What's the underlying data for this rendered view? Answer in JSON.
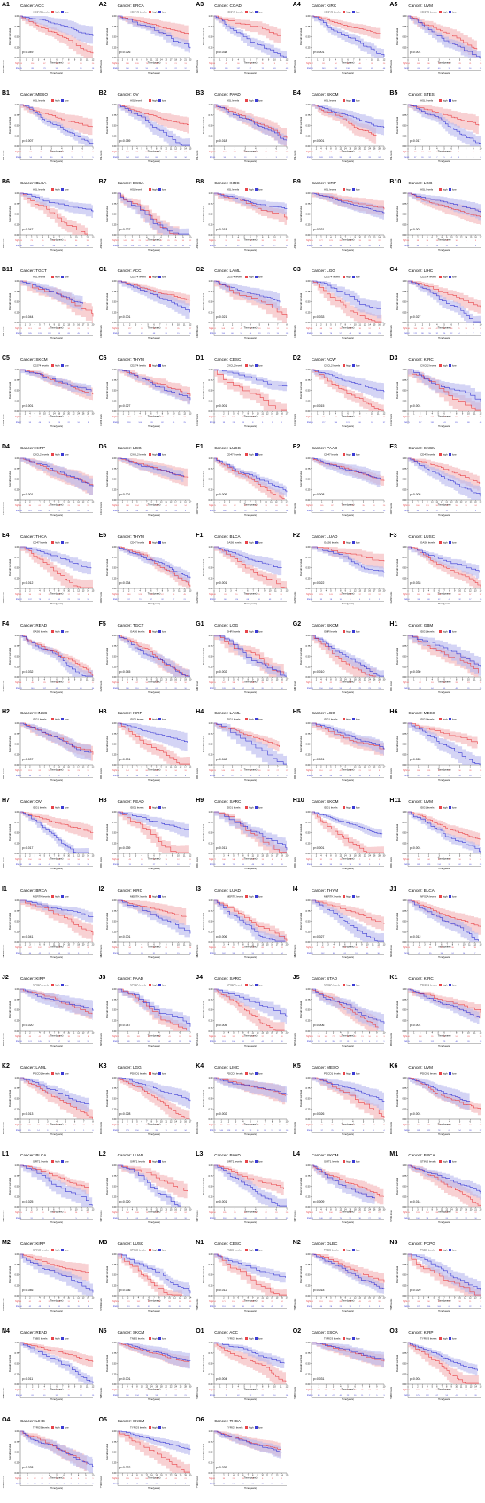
{
  "colors": {
    "high": "#e8454a",
    "low": "#3c3cd4",
    "high_band": "#f3b3b5",
    "low_band": "#b7b7ee",
    "text": "#000000"
  },
  "common": {
    "legend_high": "high",
    "legend_low": "low",
    "xlabel": "Time(years)",
    "ylabel": "Overall survival",
    "risk_rows": [
      "high",
      "low"
    ]
  },
  "chart_data": [
    {
      "id": "A1",
      "type": "line",
      "cancer": "ACC",
      "title": "Cancer: ACC",
      "gene_label": "ADCY5 levels",
      "p": "p=0.049",
      "xmax": 12
    },
    {
      "id": "A2",
      "type": "line",
      "cancer": "BRCA",
      "title": "Cancer: BRCA",
      "gene_label": "ADCY5 levels",
      "p": "p=0.026",
      "xmax": 23
    },
    {
      "id": "A3",
      "type": "line",
      "cancer": "COAD",
      "title": "Cancer: COAD",
      "gene_label": "ADCY5 levels",
      "p": "p=0.038",
      "xmax": 12
    },
    {
      "id": "A4",
      "type": "line",
      "cancer": "KIRC",
      "title": "Cancer: KIRC",
      "gene_label": "ADCY5 levels",
      "p": "p<0.001",
      "xmax": 12
    },
    {
      "id": "A5",
      "type": "line",
      "cancer": "UVM",
      "title": "Cancer: UVM",
      "gene_label": "ADCY5 levels",
      "p": "p<0.001",
      "xmax": 7
    },
    {
      "id": "B1",
      "type": "line",
      "cancer": "MESO",
      "title": "Cancer: MESO",
      "gene_label": "ASL levels",
      "p": "p=0.007",
      "xmax": 7
    },
    {
      "id": "B2",
      "type": "line",
      "cancer": "OV",
      "title": "Cancer: OV",
      "gene_label": "ASL levels",
      "p": "p=0.059",
      "xmax": 15
    },
    {
      "id": "B3",
      "type": "line",
      "cancer": "PAAD",
      "title": "Cancer: PAAD",
      "gene_label": "ASL levels",
      "p": "p=0.018",
      "xmax": 7
    },
    {
      "id": "B4",
      "type": "line",
      "cancer": "SKCM",
      "title": "Cancer: SKCM",
      "gene_label": "ASL levels",
      "p": "p<0.001",
      "xmax": 30
    },
    {
      "id": "B5",
      "type": "line",
      "cancer": "STES",
      "title": "Cancer: STES",
      "gene_label": "ASL levels",
      "p": "p=0.017",
      "xmax": 10
    },
    {
      "id": "B6",
      "type": "line",
      "cancer": "BLCA",
      "title": "Cancer: BLCA",
      "gene_label": "ASL levels",
      "p": "p=0.047",
      "xmax": 13
    },
    {
      "id": "B7",
      "type": "line",
      "cancer": "ESCA",
      "title": "Cancer: ESCA",
      "gene_label": "ASL levels",
      "p": "p=0.027",
      "xmax": 10
    },
    {
      "id": "B8",
      "type": "line",
      "cancer": "KIRC",
      "title": "Cancer: KIRC",
      "gene_label": "ASL levels",
      "p": "p=0.018",
      "xmax": 12
    },
    {
      "id": "B9",
      "type": "line",
      "cancer": "KIRP",
      "title": "Cancer: KIRP",
      "gene_label": "ASL levels",
      "p": "p=0.031",
      "xmax": 15
    },
    {
      "id": "B10",
      "type": "line",
      "cancer": "LGG",
      "title": "Cancer: LGG",
      "gene_label": "ASL levels",
      "p": "p<0.001",
      "xmax": 17
    },
    {
      "id": "B11",
      "type": "line",
      "cancer": "TGCT",
      "title": "Cancer: TGCT",
      "gene_label": "ASL levels",
      "p": "p=0.044",
      "xmax": 20
    },
    {
      "id": "C1",
      "type": "line",
      "cancer": "ACC",
      "title": "Cancer: ACC",
      "gene_label": "CD274 levels",
      "p": "p<0.001",
      "xmax": 12
    },
    {
      "id": "C2",
      "type": "line",
      "cancer": "LAML",
      "title": "Cancer: LAML",
      "gene_label": "CD274 levels",
      "p": "p=0.021",
      "xmax": 8
    },
    {
      "id": "C3",
      "type": "line",
      "cancer": "LGG",
      "title": "Cancer: LGG",
      "gene_label": "CD274 levels",
      "p": "p=0.033",
      "xmax": 17
    },
    {
      "id": "C4",
      "type": "line",
      "cancer": "LIHC",
      "title": "Cancer: LIHC",
      "gene_label": "CD274 levels",
      "p": "p=0.027",
      "xmax": 10
    },
    {
      "id": "C5",
      "type": "line",
      "cancer": "SKCM",
      "title": "Cancer: SKCM",
      "gene_label": "CD274 levels",
      "p": "p<0.001",
      "xmax": 30
    },
    {
      "id": "C6",
      "type": "line",
      "cancer": "THYM",
      "title": "Cancer: THYM",
      "gene_label": "CD274 levels",
      "p": "p=0.027",
      "xmax": 13
    },
    {
      "id": "D1",
      "type": "line",
      "cancer": "CESC",
      "title": "Cancer: CESC",
      "gene_label": "CXCL2 levels",
      "p": "p<0.001",
      "xmax": 17
    },
    {
      "id": "D2",
      "type": "line",
      "cancer": "ACW",
      "title": "Cancer: ACW",
      "gene_label": "CXCL2 levels",
      "p": "p=0.015",
      "xmax": 12
    },
    {
      "id": "D3",
      "type": "line",
      "cancer": "KIRC",
      "title": "Cancer: KIRC",
      "gene_label": "CXCL2 levels",
      "p": "p<0.001",
      "xmax": 12
    },
    {
      "id": "D4",
      "type": "line",
      "cancer": "KIRP",
      "title": "Cancer: KIRP",
      "gene_label": "CXCL2 levels",
      "p": "p<0.001",
      "xmax": 15
    },
    {
      "id": "D5",
      "type": "line",
      "cancer": "LGG",
      "title": "Cancer: LGG",
      "gene_label": "CXCL2 levels",
      "p": "p<0.001",
      "xmax": 17
    },
    {
      "id": "E1",
      "type": "line",
      "cancer": "LUSC",
      "title": "Cancer: LUSC",
      "gene_label": "CD47 levels",
      "p": "p=0.009",
      "xmax": 14
    },
    {
      "id": "E2",
      "type": "line",
      "cancer": "PAAD",
      "title": "Cancer: PAAD",
      "gene_label": "CD47 levels",
      "p": "p=0.008",
      "xmax": 7
    },
    {
      "id": "E3",
      "type": "line",
      "cancer": "SKCM",
      "title": "Cancer: SKCM",
      "gene_label": "CD47 levels",
      "p": "p=0.005",
      "xmax": 30
    },
    {
      "id": "E4",
      "type": "line",
      "cancer": "THCA",
      "title": "Cancer: THCA",
      "gene_label": "CD47 levels",
      "p": "p=0.012",
      "xmax": 15
    },
    {
      "id": "E5",
      "type": "line",
      "cancer": "THYM",
      "title": "Cancer: THYM",
      "gene_label": "CD47 levels",
      "p": "p=0.034",
      "xmax": 13
    },
    {
      "id": "F1",
      "type": "line",
      "cancer": "BLCA",
      "title": "Cancer: BLCA",
      "gene_label": "GAS6 levels",
      "p": "p<0.001",
      "xmax": 13
    },
    {
      "id": "F2",
      "type": "line",
      "cancer": "LUAD",
      "title": "Cancer: LUAD",
      "gene_label": "GAS6 levels",
      "p": "p=0.022",
      "xmax": 20
    },
    {
      "id": "F3",
      "type": "line",
      "cancer": "LUSC",
      "title": "Cancer: LUSC",
      "gene_label": "GAS6 levels",
      "p": "p=0.033",
      "xmax": 14
    },
    {
      "id": "F4",
      "type": "line",
      "cancer": "READ",
      "title": "Cancer: READ",
      "gene_label": "GAS6 levels",
      "p": "p=0.032",
      "xmax": 12
    },
    {
      "id": "F5",
      "type": "line",
      "cancer": "TGCT",
      "title": "Cancer: TGCT",
      "gene_label": "GAS6 levels",
      "p": "p=0.045",
      "xmax": 20
    },
    {
      "id": "G1",
      "type": "line",
      "cancer": "LGG",
      "title": "Cancer: LGG",
      "gene_label": "GHR levels",
      "p": "p=0.002",
      "xmax": 17
    },
    {
      "id": "G2",
      "type": "line",
      "cancer": "SKCM",
      "title": "Cancer: SKCM",
      "gene_label": "GHR levels",
      "p": "p=0.010",
      "xmax": 30
    },
    {
      "id": "H1",
      "type": "line",
      "cancer": "GBM",
      "title": "Cancer: GBM",
      "gene_label": "IDO1 levels",
      "p": "p=0.030",
      "xmax": 12
    },
    {
      "id": "H2",
      "type": "line",
      "cancer": "HNSC",
      "title": "Cancer: HNSC",
      "gene_label": "IDO1 levels",
      "p": "p=0.007",
      "xmax": 18
    },
    {
      "id": "H3",
      "type": "line",
      "cancer": "KIRP",
      "title": "Cancer: KIRP",
      "gene_label": "IDO1 levels",
      "p": "p<0.001",
      "xmax": 15
    },
    {
      "id": "H4",
      "type": "line",
      "cancer": "LAML",
      "title": "Cancer: LAML",
      "gene_label": "IDO1 levels",
      "p": "p=0.048",
      "xmax": 8
    },
    {
      "id": "H5",
      "type": "line",
      "cancer": "LGG",
      "title": "Cancer: LGG",
      "gene_label": "IDO1 levels",
      "p": "p<0.001",
      "xmax": 17
    },
    {
      "id": "H6",
      "type": "line",
      "cancer": "MESO",
      "title": "Cancer: MESO",
      "gene_label": "IDO1 levels",
      "p": "p=0.028",
      "xmax": 7
    },
    {
      "id": "H7",
      "type": "line",
      "cancer": "OV",
      "title": "Cancer: OV",
      "gene_label": "IDO1 levels",
      "p": "p=0.017",
      "xmax": 15
    },
    {
      "id": "H8",
      "type": "line",
      "cancer": "READ",
      "title": "Cancer: READ",
      "gene_label": "IDO1 levels",
      "p": "p=0.039",
      "xmax": 12
    },
    {
      "id": "H9",
      "type": "line",
      "cancer": "SARC",
      "title": "Cancer: SARC",
      "gene_label": "IDO1 levels",
      "p": "p=0.011",
      "xmax": 20
    },
    {
      "id": "H10",
      "type": "line",
      "cancer": "SKCM",
      "title": "Cancer: SKCM",
      "gene_label": "IDO1 levels",
      "p": "p<0.001",
      "xmax": 30
    },
    {
      "id": "H11",
      "type": "line",
      "cancer": "UVM",
      "title": "Cancer: UVM",
      "gene_label": "IDO1 levels",
      "p": "p<0.001",
      "xmax": 7
    },
    {
      "id": "I1",
      "type": "line",
      "cancer": "BRCA",
      "title": "Cancer: BRCA",
      "gene_label": "MERTK levels",
      "p": "p=0.041",
      "xmax": 23
    },
    {
      "id": "I2",
      "type": "line",
      "cancer": "KIRC",
      "title": "Cancer: KIRC",
      "gene_label": "MERTK levels",
      "p": "p<0.001",
      "xmax": 12
    },
    {
      "id": "I3",
      "type": "line",
      "cancer": "LUAD",
      "title": "Cancer: LUAD",
      "gene_label": "MERTK levels",
      "p": "p=0.006",
      "xmax": 20
    },
    {
      "id": "I4",
      "type": "line",
      "cancer": "THYM",
      "title": "Cancer: THYM",
      "gene_label": "MERTK levels",
      "p": "p=0.027",
      "xmax": 13
    },
    {
      "id": "J1",
      "type": "line",
      "cancer": "BLCA",
      "title": "Cancer: BLCA",
      "gene_label": "NFS2A levels",
      "p": "p=0.012",
      "xmax": 13
    },
    {
      "id": "J2",
      "type": "line",
      "cancer": "KIRP",
      "title": "Cancer: KIRP",
      "gene_label": "NFS2A levels",
      "p": "p=0.020",
      "xmax": 15
    },
    {
      "id": "J3",
      "type": "line",
      "cancer": "PAAD",
      "title": "Cancer: PAAD",
      "gene_label": "NFS2A levels",
      "p": "p=0.047",
      "xmax": 7
    },
    {
      "id": "J4",
      "type": "line",
      "cancer": "SARC",
      "title": "Cancer: SARC",
      "gene_label": "NFS2A levels",
      "p": "p=0.005",
      "xmax": 20
    },
    {
      "id": "J5",
      "type": "line",
      "cancer": "STAD",
      "title": "Cancer: STAD",
      "gene_label": "NFS2A levels",
      "p": "p=0.006",
      "xmax": 10
    },
    {
      "id": "K1",
      "type": "line",
      "cancer": "KIRC",
      "title": "Cancer: KIRC",
      "gene_label": "PDCD1 levels",
      "p": "p<0.001",
      "xmax": 12
    },
    {
      "id": "K2",
      "type": "line",
      "cancer": "LAML",
      "title": "Cancer: LAML",
      "gene_label": "PDCD1 levels",
      "p": "p=0.013",
      "xmax": 8
    },
    {
      "id": "K3",
      "type": "line",
      "cancer": "LGG",
      "title": "Cancer: LGG",
      "gene_label": "PDCD1 levels",
      "p": "p=0.028",
      "xmax": 17
    },
    {
      "id": "K4",
      "type": "line",
      "cancer": "LIHC",
      "title": "Cancer: LIHC",
      "gene_label": "PDCD1 levels",
      "p": "p=0.002",
      "xmax": 10
    },
    {
      "id": "K5",
      "type": "line",
      "cancer": "MESO",
      "title": "Cancer: MESO",
      "gene_label": "PDCD1 levels",
      "p": "p=0.026",
      "xmax": 7
    },
    {
      "id": "K6",
      "type": "line",
      "cancer": "UVM",
      "title": "Cancer: UVM",
      "gene_label": "PDCD1 levels",
      "p": "p<0.001",
      "xmax": 7
    },
    {
      "id": "L1",
      "type": "line",
      "cancer": "BLCA",
      "title": "Cancer: BLCA",
      "gene_label": "SIRT1 levels",
      "p": "p=0.025",
      "xmax": 13
    },
    {
      "id": "L2",
      "type": "line",
      "cancer": "LUAD",
      "title": "Cancer: LUAD",
      "gene_label": "SIRT1 levels",
      "p": "p=0.020",
      "xmax": 20
    },
    {
      "id": "L3",
      "type": "line",
      "cancer": "PAAD",
      "title": "Cancer: PAAD",
      "gene_label": "SIRT1 levels",
      "p": "p<0.001",
      "xmax": 7
    },
    {
      "id": "L4",
      "type": "line",
      "cancer": "SKCM",
      "title": "Cancer: SKCM",
      "gene_label": "SIRT1 levels",
      "p": "p=0.009",
      "xmax": 30
    },
    {
      "id": "M1",
      "type": "line",
      "cancer": "BRCA",
      "title": "Cancer: BRCA",
      "gene_label": "STING levels",
      "p": "p=0.014",
      "xmax": 23
    },
    {
      "id": "M2",
      "type": "line",
      "cancer": "KIRP",
      "title": "Cancer: KIRP",
      "gene_label": "STING levels",
      "p": "p=0.046",
      "xmax": 15
    },
    {
      "id": "M3",
      "type": "line",
      "cancer": "LUSC",
      "title": "Cancer: LUSC",
      "gene_label": "STING levels",
      "p": "p=0.036",
      "xmax": 14
    },
    {
      "id": "N1",
      "type": "line",
      "cancer": "CESC",
      "title": "Cancer: CESC",
      "gene_label": "TNBS levels",
      "p": "p=0.012",
      "xmax": 17
    },
    {
      "id": "N2",
      "type": "line",
      "cancer": "DLBC",
      "title": "Cancer: DLBC",
      "gene_label": "TNBS levels",
      "p": "p=0.018",
      "xmax": 20
    },
    {
      "id": "N3",
      "type": "line",
      "cancer": "PCPG",
      "title": "Cancer: PCPG",
      "gene_label": "TNBS levels",
      "p": "p=0.029",
      "xmax": 14
    },
    {
      "id": "N4",
      "type": "line",
      "cancer": "READ",
      "title": "Cancer: READ",
      "gene_label": "TNBS levels",
      "p": "p=0.011",
      "xmax": 12
    },
    {
      "id": "N5",
      "type": "line",
      "cancer": "SKCM",
      "title": "Cancer: SKCM",
      "gene_label": "TNBS levels",
      "p": "p<0.001",
      "xmax": 30
    },
    {
      "id": "O1",
      "type": "line",
      "cancer": "ACC",
      "title": "Cancer: ACC",
      "gene_label": "TYRO3 levels",
      "p": "p=0.004",
      "xmax": 12
    },
    {
      "id": "O2",
      "type": "line",
      "cancer": "ESCA",
      "title": "Cancer: ESCA",
      "gene_label": "TYRO3 levels",
      "p": "p=0.031",
      "xmax": 10
    },
    {
      "id": "O3",
      "type": "line",
      "cancer": "KIRP",
      "title": "Cancer: KIRP",
      "gene_label": "TYRO3 levels",
      "p": "p=0.004",
      "xmax": 15
    },
    {
      "id": "O4",
      "type": "line",
      "cancer": "LIHC",
      "title": "Cancer: LIHC",
      "gene_label": "TYRO3 levels",
      "p": "p=0.038",
      "xmax": 10
    },
    {
      "id": "O5",
      "type": "line",
      "cancer": "SKCM",
      "title": "Cancer: SKCM",
      "gene_label": "TYRO3 levels",
      "p": "p=0.032",
      "xmax": 30
    },
    {
      "id": "O6",
      "type": "line",
      "cancer": "THCA",
      "title": "Cancer: THCA",
      "gene_label": "TYRO3 levels",
      "p": "p=0.039",
      "xmax": 15
    }
  ]
}
